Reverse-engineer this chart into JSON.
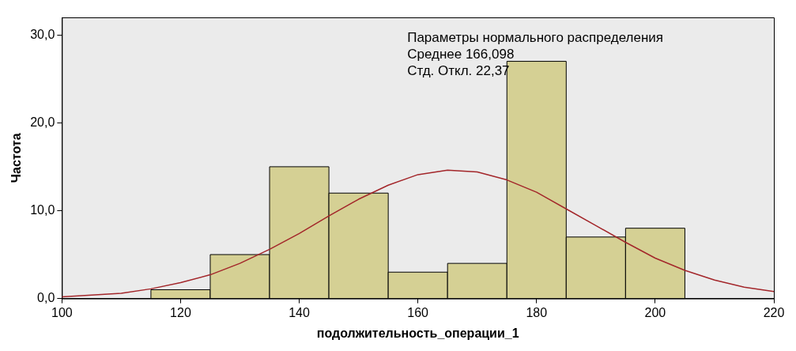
{
  "chart_data": {
    "type": "histogram",
    "xlabel": "подолжительность_операции_1",
    "ylabel": "Частота",
    "annotations": [
      "Параметры нормального распределения",
      "Среднее 166,098",
      "Стд. Откл. 22,37"
    ],
    "bins": [
      115,
      125,
      135,
      145,
      155,
      165,
      175,
      185,
      195,
      205
    ],
    "values": [
      1,
      5,
      15,
      12,
      3,
      4,
      27,
      7,
      8
    ],
    "color": "#d5d094",
    "series": [
      {
        "type": "line",
        "color": "#a3262a",
        "x": [
          100,
          105,
          110,
          115,
          120,
          125,
          130,
          135,
          140,
          145,
          150,
          155,
          160,
          165,
          170,
          175,
          180,
          185,
          190,
          195,
          200,
          205,
          210,
          215,
          220
        ],
        "values": [
          0.2,
          0.4,
          0.6,
          1.1,
          1.8,
          2.7,
          4.0,
          5.6,
          7.4,
          9.4,
          11.3,
          12.9,
          14.1,
          14.6,
          14.4,
          13.5,
          12.1,
          10.2,
          8.3,
          6.4,
          4.6,
          3.2,
          2.1,
          1.3,
          0.8
        ]
      }
    ],
    "xlim": [
      100,
      220
    ],
    "xticks": [
      100,
      120,
      140,
      160,
      180,
      200,
      220
    ],
    "ylim": [
      0,
      32
    ],
    "yticks": [
      {
        "value": 0,
        "label": "0,0"
      },
      {
        "value": 10,
        "label": "10,0"
      },
      {
        "value": 20,
        "label": "20,0"
      },
      {
        "value": 30,
        "label": "30,0"
      }
    ],
    "grid": false,
    "legend": false
  }
}
